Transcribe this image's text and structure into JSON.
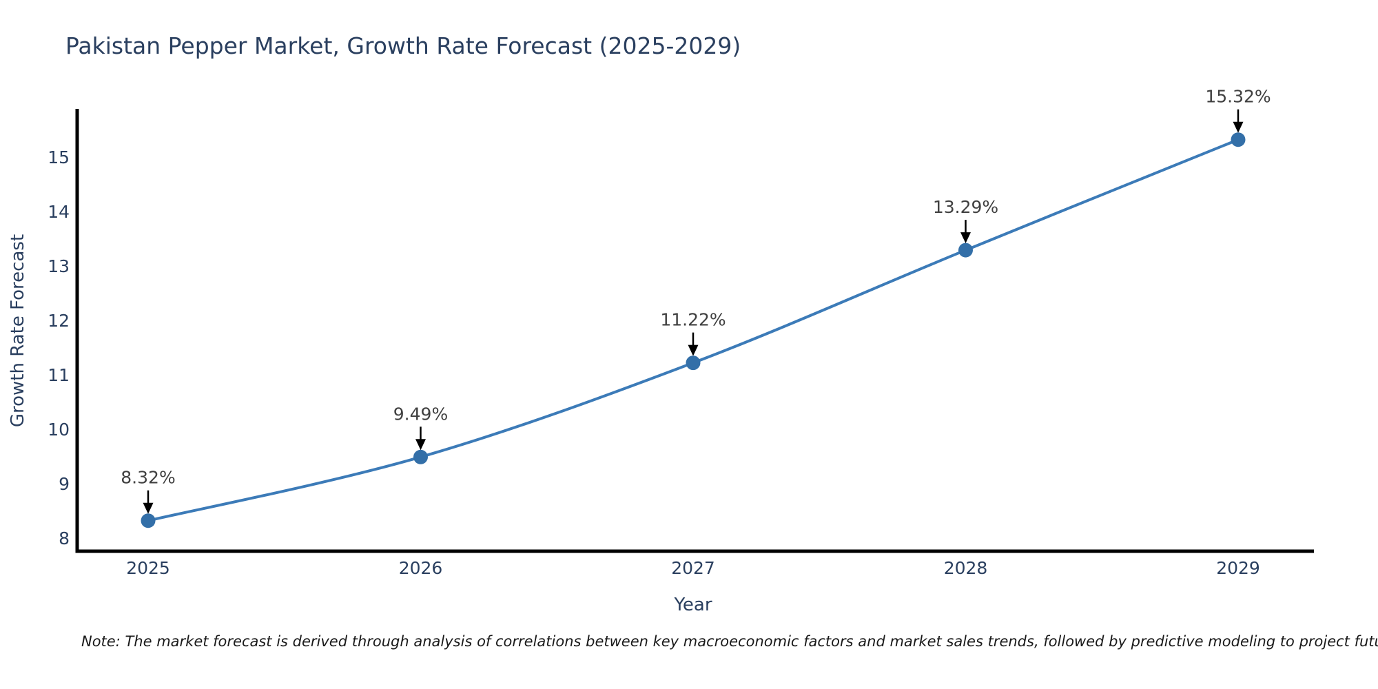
{
  "title": "Pakistan Pepper Market, Growth Rate Forecast (2025-2029)",
  "note": "Note: The market forecast is derived through analysis of correlations between key macroeconomic factors and market sales trends, followed by predictive modeling to project future sales",
  "chart_data": {
    "type": "line",
    "title": "Pakistan Pepper Market, Growth Rate Forecast (2025-2029)",
    "xlabel": "Year",
    "ylabel": "Growth Rate Forecast",
    "x": [
      2025,
      2026,
      2027,
      2028,
      2029
    ],
    "values": [
      8.32,
      9.49,
      11.22,
      13.29,
      15.32
    ],
    "point_labels": [
      "8.32%",
      "9.49%",
      "11.22%",
      "13.29%",
      "15.32%"
    ],
    "xticks": [
      "2025",
      "2026",
      "2027",
      "2028",
      "2029"
    ],
    "yticks": [
      8,
      9,
      10,
      11,
      12,
      13,
      14,
      15
    ],
    "ylim": [
      7.76,
      15.89
    ],
    "xlim": [
      2024.74,
      2029.28
    ],
    "grid": false,
    "legend": "none",
    "colors": {
      "line": "#3c7bb8",
      "marker": "#336fa8",
      "arrow": "#000000",
      "axis_line": "#000000",
      "title_text": "#2a3f5f",
      "tick_text": "#2a3f5f",
      "annotation_text": "#404040",
      "note_text": "#1a1a1a",
      "background": "#ffffff"
    }
  }
}
